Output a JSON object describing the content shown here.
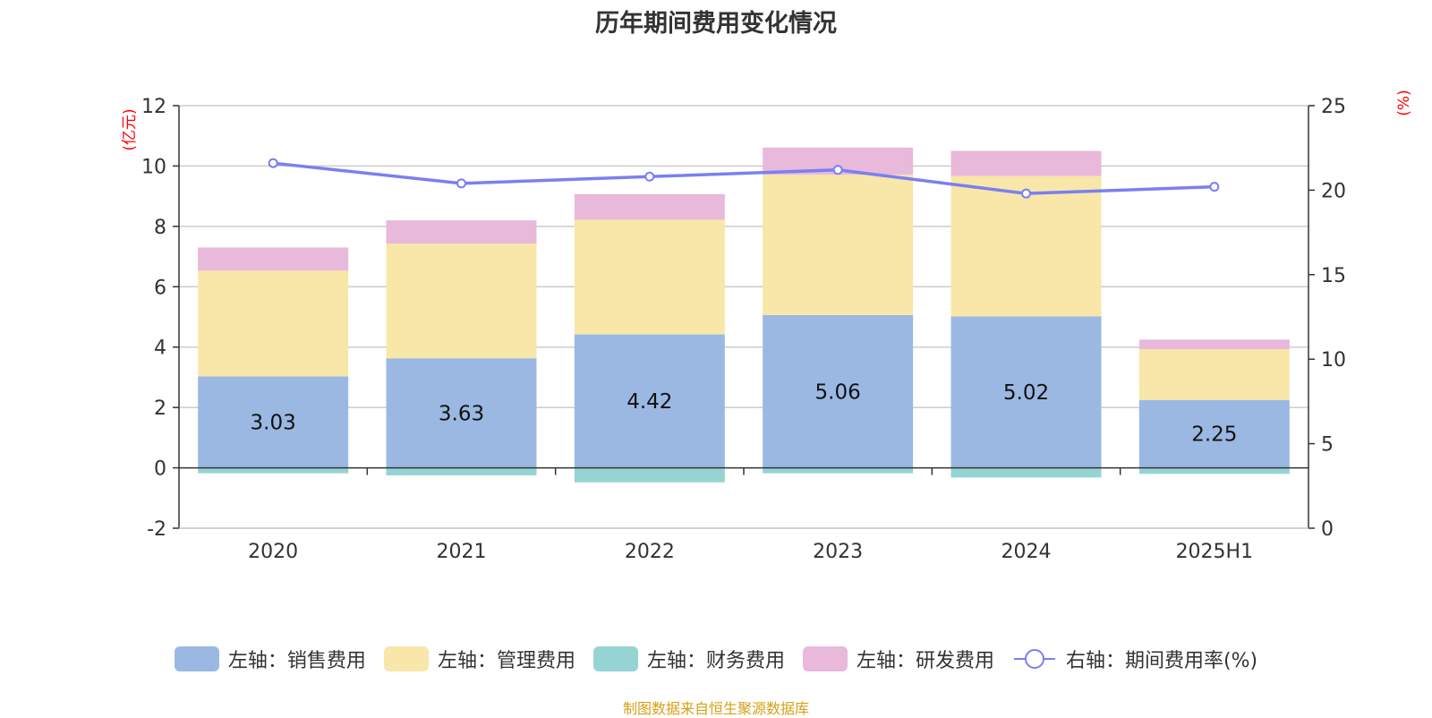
{
  "title": "历年期间费用变化情况",
  "source": "制图数据来自恒生聚源数据库",
  "chart_data": {
    "type": "bar",
    "stacked": true,
    "categories": [
      "2020",
      "2021",
      "2022",
      "2023",
      "2024",
      "2025H1"
    ],
    "left_axis": {
      "unit": "(亿元)",
      "min": -2,
      "max": 12,
      "ticks": [
        -2,
        0,
        2,
        4,
        6,
        8,
        10,
        12
      ]
    },
    "right_axis": {
      "unit": "(%)",
      "min": 0,
      "max": 25,
      "ticks": [
        0,
        5,
        10,
        15,
        20,
        25
      ]
    },
    "series": [
      {
        "name": "左轴：销售费用",
        "kind": "bar",
        "axis": "left",
        "color": "#9bb8e2",
        "values": [
          3.03,
          3.63,
          4.42,
          5.06,
          5.02,
          2.25
        ],
        "show_labels": true
      },
      {
        "name": "左轴：管理费用",
        "kind": "bar",
        "axis": "left",
        "color": "#f8e7a8",
        "values": [
          3.5,
          3.8,
          3.8,
          4.65,
          4.65,
          1.68
        ]
      },
      {
        "name": "左轴：财务费用",
        "kind": "bar",
        "axis": "left",
        "color": "#96d4d4",
        "values": [
          -0.18,
          -0.25,
          -0.48,
          -0.18,
          -0.32,
          -0.2
        ]
      },
      {
        "name": "左轴：研发费用",
        "kind": "bar",
        "axis": "left",
        "color": "#e8b9da",
        "values": [
          0.77,
          0.77,
          0.85,
          0.9,
          0.83,
          0.32
        ]
      },
      {
        "name": "右轴：期间费用率(%)",
        "kind": "line",
        "axis": "right",
        "color": "#7b7ff0",
        "values": [
          21.6,
          20.4,
          20.8,
          21.2,
          19.8,
          20.2
        ]
      }
    ],
    "grid": true,
    "legend_position": "bottom"
  }
}
